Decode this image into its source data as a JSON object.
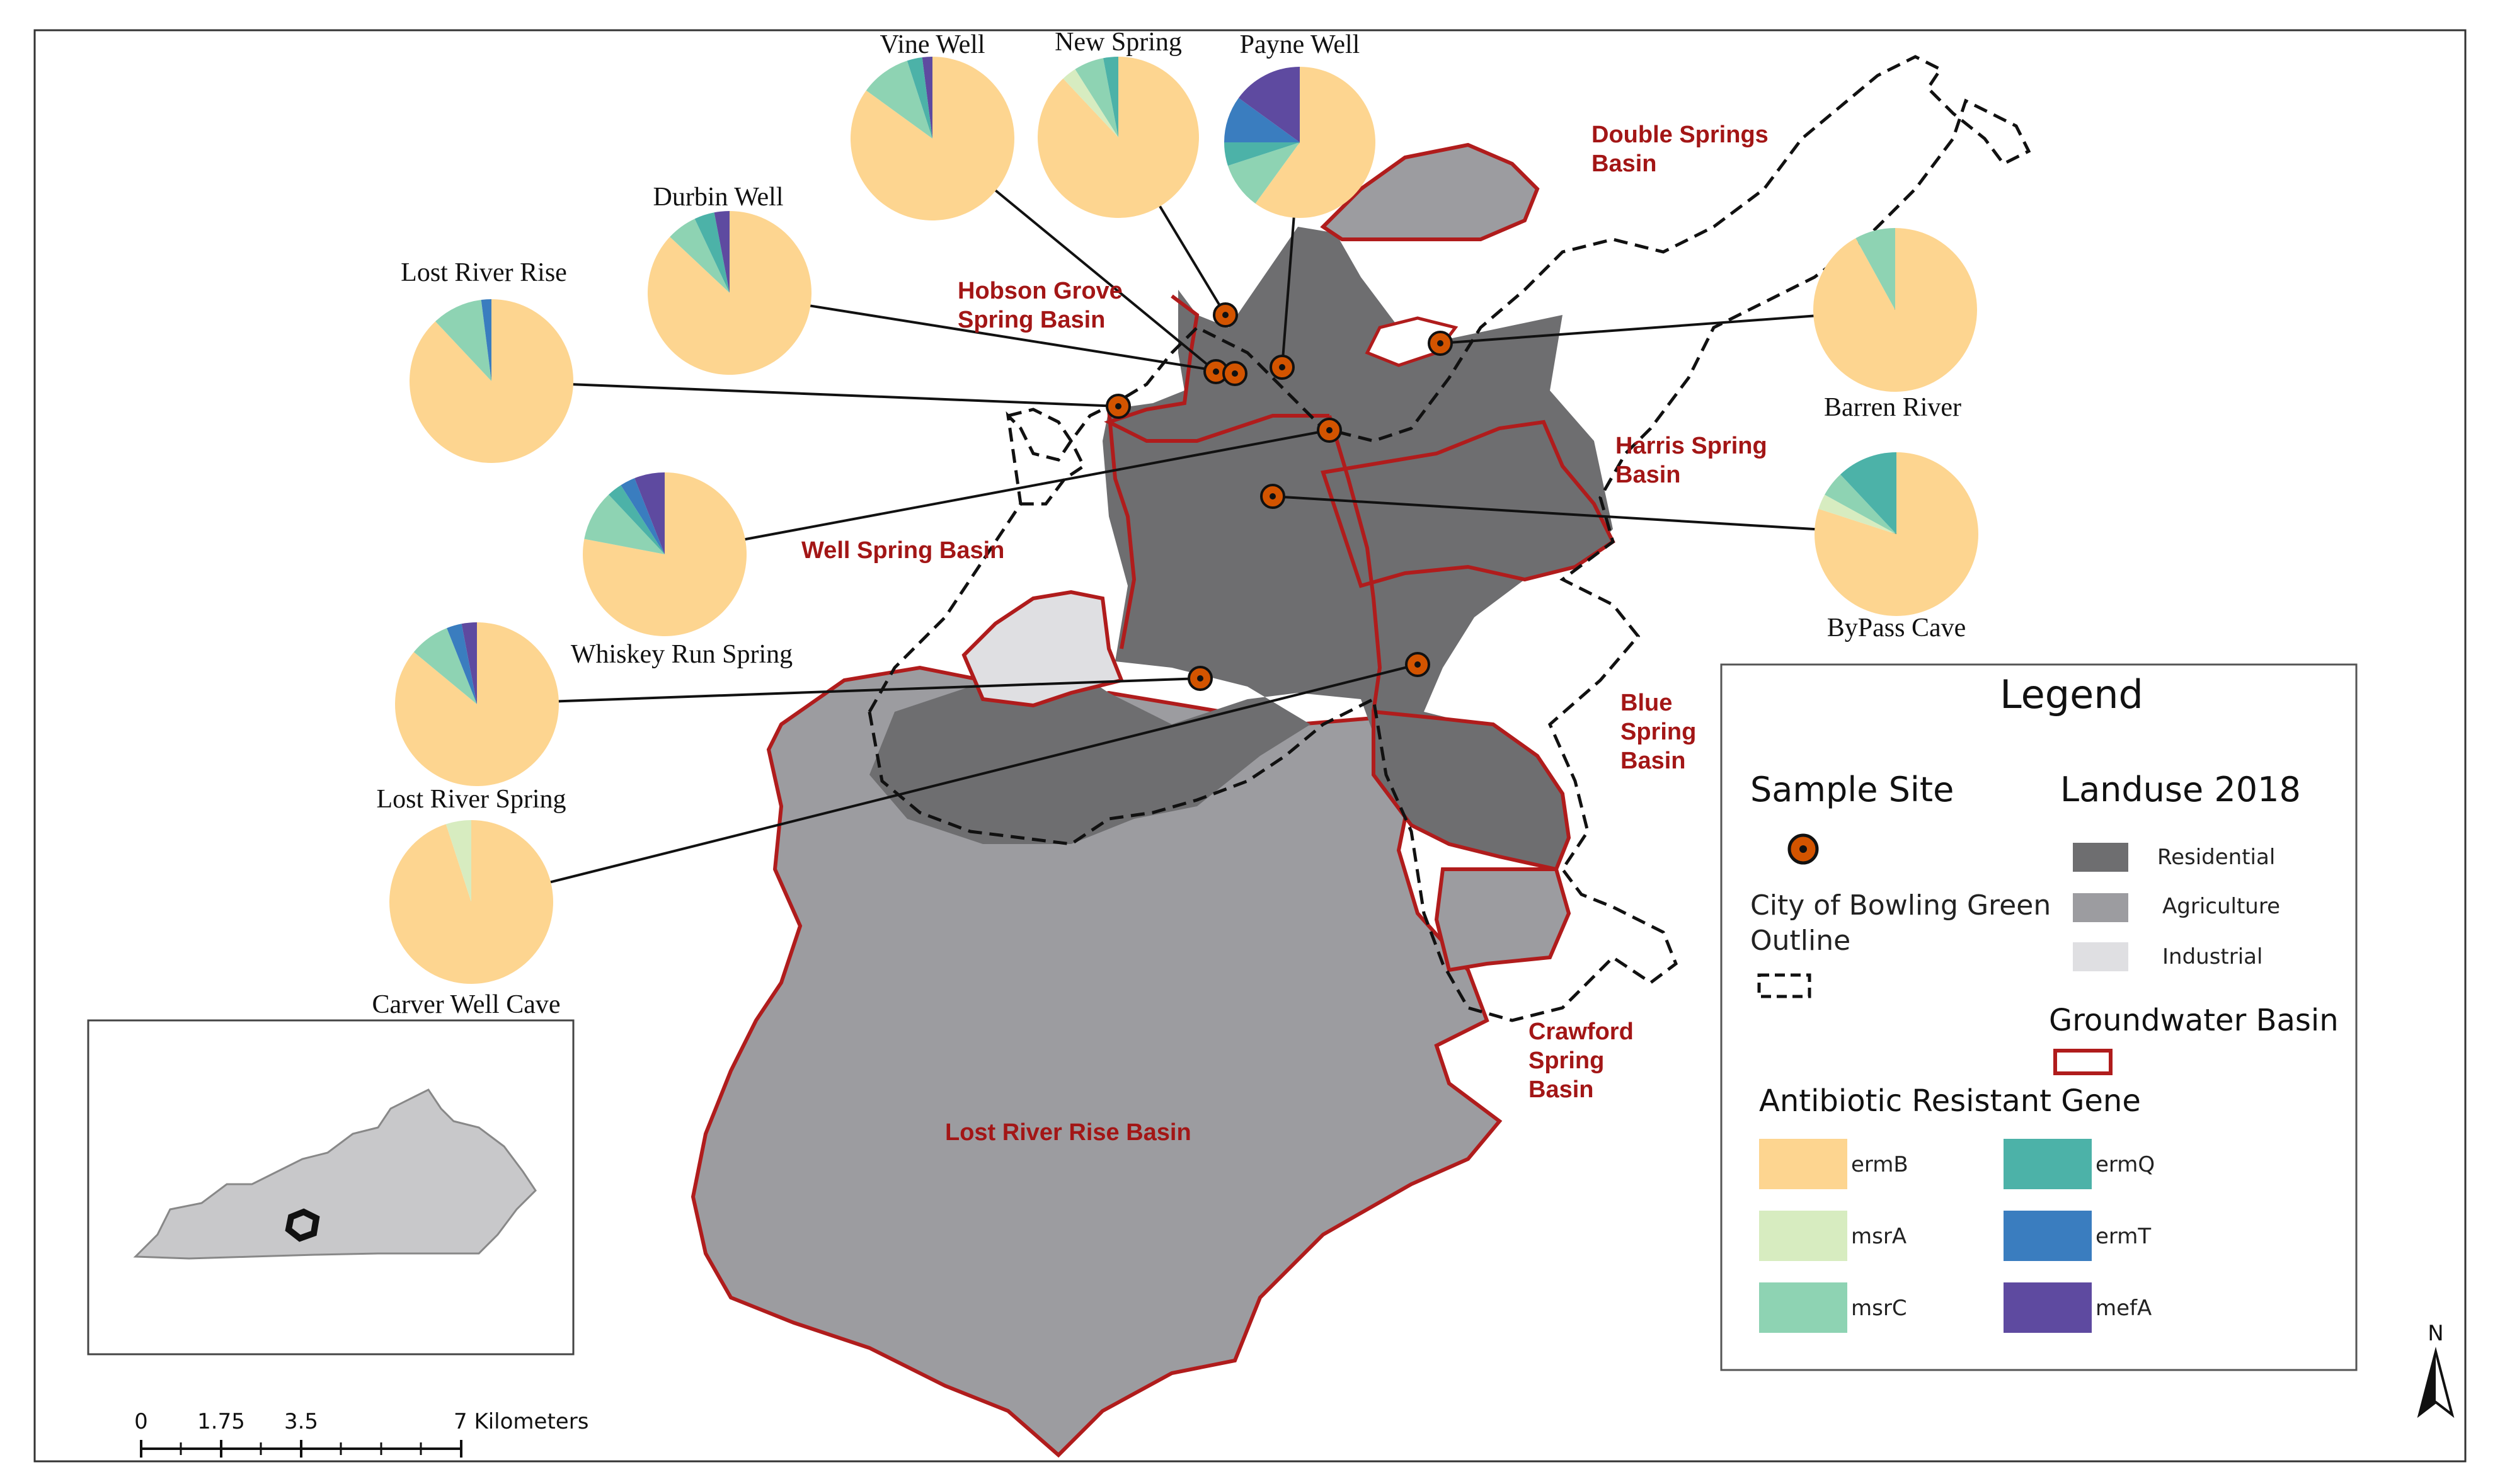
{
  "map": {
    "basins": [
      {
        "id": "double-springs",
        "label": [
          "Double Springs",
          "Basin"
        ]
      },
      {
        "id": "hobson-grove",
        "label": [
          "Hobson Grove",
          "Spring Basin"
        ]
      },
      {
        "id": "harris-spring",
        "label": [
          "Harris Spring",
          "Basin"
        ]
      },
      {
        "id": "well-spring",
        "label": [
          "Well Spring Basin"
        ]
      },
      {
        "id": "blue-spring",
        "label": [
          "Blue",
          "Spring",
          "Basin"
        ]
      },
      {
        "id": "crawford-spring",
        "label": [
          "Crawford",
          "Spring",
          "Basin"
        ]
      },
      {
        "id": "lost-river-rise",
        "label": [
          "Lost River Rise Basin"
        ]
      }
    ],
    "genes": [
      {
        "name": "ermB",
        "color": "#fdd590"
      },
      {
        "name": "msrA",
        "color": "#d7ecc0"
      },
      {
        "name": "msrC",
        "color": "#8ed3b3"
      },
      {
        "name": "ermQ",
        "color": "#4cb2a8"
      },
      {
        "name": "ermT",
        "color": "#3a7dbf"
      },
      {
        "name": "mefA",
        "color": "#5e4aa0"
      }
    ],
    "sites": [
      {
        "id": "vine-well",
        "name": "Vine Well",
        "gene_fractions": {
          "ermB": 0.85,
          "msrA": 0.0,
          "msrC": 0.1,
          "ermQ": 0.03,
          "ermT": 0.0,
          "mefA": 0.02
        }
      },
      {
        "id": "new-spring",
        "name": "New Spring",
        "gene_fractions": {
          "ermB": 0.88,
          "msrA": 0.03,
          "msrC": 0.06,
          "ermQ": 0.03,
          "ermT": 0.0,
          "mefA": 0.0
        }
      },
      {
        "id": "payne-well",
        "name": "Payne Well",
        "gene_fractions": {
          "ermB": 0.6,
          "msrA": 0.0,
          "msrC": 0.1,
          "ermQ": 0.05,
          "ermT": 0.1,
          "mefA": 0.15
        }
      },
      {
        "id": "durbin-well",
        "name": "Durbin Well",
        "gene_fractions": {
          "ermB": 0.87,
          "msrA": 0.0,
          "msrC": 0.06,
          "ermQ": 0.04,
          "ermT": 0.0,
          "mefA": 0.03
        }
      },
      {
        "id": "lost-river-rise",
        "name": "Lost River Rise",
        "gene_fractions": {
          "ermB": 0.88,
          "msrA": 0.0,
          "msrC": 0.1,
          "ermQ": 0.0,
          "ermT": 0.02,
          "mefA": 0.0
        }
      },
      {
        "id": "whiskey-run-spring",
        "name": "Whiskey Run Spring",
        "gene_fractions": {
          "ermB": 0.78,
          "msrA": 0.0,
          "msrC": 0.1,
          "ermQ": 0.03,
          "ermT": 0.03,
          "mefA": 0.06
        }
      },
      {
        "id": "lost-river-spring",
        "name": "Lost River Spring",
        "gene_fractions": {
          "ermB": 0.86,
          "msrA": 0.0,
          "msrC": 0.08,
          "ermQ": 0.0,
          "ermT": 0.03,
          "mefA": 0.03
        }
      },
      {
        "id": "carver-well-cave",
        "name": "Carver Well Cave",
        "gene_fractions": {
          "ermB": 0.95,
          "msrA": 0.05,
          "msrC": 0.0,
          "ermQ": 0.0,
          "ermT": 0.0,
          "mefA": 0.0
        }
      },
      {
        "id": "barren-river",
        "name": "Barren River",
        "gene_fractions": {
          "ermB": 0.92,
          "msrA": 0.0,
          "msrC": 0.08,
          "ermQ": 0.0,
          "ermT": 0.0,
          "mefA": 0.0
        }
      },
      {
        "id": "bypass-cave",
        "name": "ByPass Cave",
        "gene_fractions": {
          "ermB": 0.8,
          "msrA": 0.03,
          "msrC": 0.05,
          "ermQ": 0.12,
          "ermT": 0.0,
          "mefA": 0.0
        }
      }
    ]
  },
  "legend": {
    "title": "Legend",
    "sample_site": "Sample Site",
    "landuse_title": "Landuse 2018",
    "landuse": [
      {
        "label": "Residential",
        "color": "#6e6e70"
      },
      {
        "label": "Agriculture",
        "color": "#9c9ca0"
      },
      {
        "label": "Industrial",
        "color": "#dfdfe2"
      }
    ],
    "city_outline": [
      "City of Bowling Green",
      "Outline"
    ],
    "groundwater_basin": "Groundwater Basin",
    "gene_title": "Antibiotic Resistant Gene"
  },
  "scale": {
    "ticks": [
      "0",
      "1.75",
      "3.5",
      "7 Kilometers"
    ]
  },
  "north_label": "N"
}
